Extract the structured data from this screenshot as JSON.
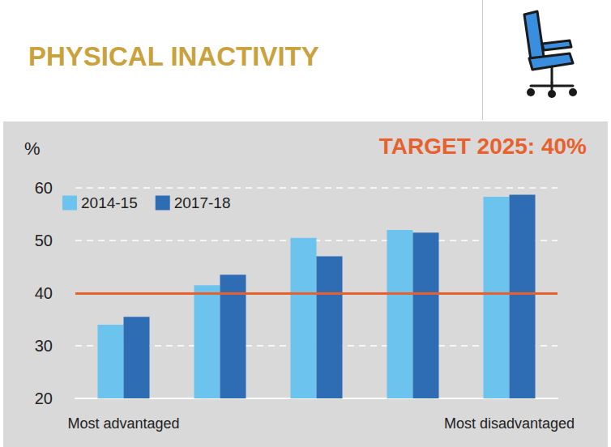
{
  "chart_data": {
    "type": "bar",
    "title": "PHYSICAL INACTIVITY",
    "y_label": "%",
    "annotation": "TARGET 2025: 40%",
    "target": 40,
    "categories": [
      "Most advantaged",
      null,
      null,
      null,
      "Most disadvantaged"
    ],
    "series": [
      {
        "name": "2014-15",
        "color": "#6cc4ee",
        "values": [
          34,
          41.5,
          50.5,
          52,
          58.3
        ]
      },
      {
        "name": "2017-18",
        "color": "#2e6db4",
        "values": [
          35.5,
          43.5,
          47,
          51.5,
          58.7
        ]
      }
    ],
    "ylim": [
      20,
      60
    ],
    "yticks": [
      20,
      30,
      40,
      50,
      60
    ],
    "grid": true,
    "legend": "upper left"
  }
}
